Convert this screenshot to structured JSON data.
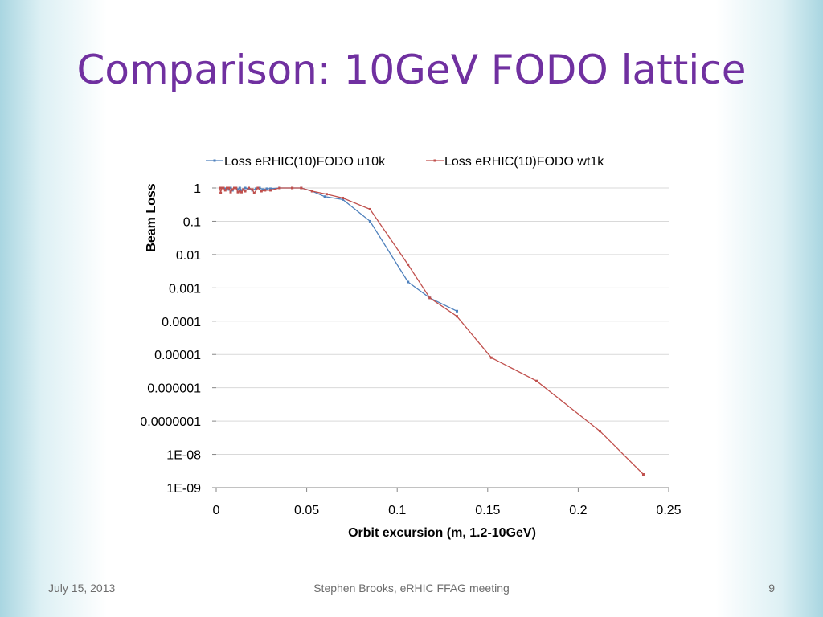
{
  "slide": {
    "title": "Comparison: 10GeV FODO lattice",
    "footer_left": "July 15, 2013",
    "footer_center": "Stephen Brooks, eRHIC FFAG meeting",
    "page_number": "9"
  },
  "colors": {
    "title": "#7030a0",
    "series_u10k": "#4f81bd",
    "series_wt1k": "#c0504d",
    "grid": "#d9d9d9"
  },
  "chart_data": {
    "type": "line",
    "title": "",
    "xlabel": "Orbit excursion (m, 1.2-10GeV)",
    "ylabel": "Beam Loss",
    "xlim": [
      0,
      0.25
    ],
    "ylim": [
      1e-09,
      1
    ],
    "yscale": "log",
    "grid": true,
    "legend_position": "top",
    "x_tick_labels": [
      "0",
      "0.05",
      "0.1",
      "0.15",
      "0.2",
      "0.25"
    ],
    "y_tick_labels": [
      "1E-09",
      "1E-08",
      "0.0000001",
      "0.000001",
      "0.00001",
      "0.0001",
      "0.001",
      "0.01",
      "0.1",
      "1"
    ],
    "series": [
      {
        "name": "Loss eRHIC(10)FODO u10k",
        "color": "#4f81bd",
        "x": [
          0.002,
          0.003,
          0.004,
          0.005,
          0.006,
          0.007,
          0.008,
          0.009,
          0.01,
          0.011,
          0.012,
          0.013,
          0.014,
          0.015,
          0.016,
          0.018,
          0.02,
          0.022,
          0.024,
          0.026,
          0.028,
          0.03,
          0.035,
          0.042,
          0.047,
          0.053,
          0.06,
          0.07,
          0.085,
          0.106,
          0.118,
          0.133
        ],
        "y": [
          1,
          1,
          1,
          0.95,
          1,
          0.9,
          1,
          0.85,
          1,
          1,
          0.9,
          1,
          0.85,
          0.9,
          1,
          0.95,
          0.85,
          0.95,
          1,
          0.9,
          0.95,
          0.95,
          1,
          1,
          1,
          0.8,
          0.55,
          0.45,
          0.1,
          0.0015,
          0.0005,
          0.0002
        ]
      },
      {
        "name": "Loss eRHIC(10)FODO wt1k",
        "color": "#c0504d",
        "x": [
          0.002,
          0.0025,
          0.003,
          0.004,
          0.005,
          0.006,
          0.007,
          0.008,
          0.009,
          0.01,
          0.011,
          0.012,
          0.013,
          0.014,
          0.015,
          0.016,
          0.018,
          0.02,
          0.021,
          0.023,
          0.025,
          0.027,
          0.03,
          0.035,
          0.042,
          0.047,
          0.053,
          0.061,
          0.07,
          0.085,
          0.106,
          0.118,
          0.133,
          0.152,
          0.177,
          0.212,
          0.236
        ],
        "y": [
          1,
          0.7,
          1,
          1,
          0.85,
          1,
          1,
          0.75,
          0.9,
          1,
          1,
          0.75,
          0.8,
          0.75,
          0.9,
          0.8,
          1,
          0.9,
          0.7,
          1,
          0.8,
          0.85,
          0.85,
          1,
          1,
          1,
          0.8,
          0.65,
          0.5,
          0.23,
          0.005,
          0.0005,
          0.00014,
          8e-06,
          1.6e-06,
          5e-08,
          2.5e-09
        ]
      }
    ]
  }
}
